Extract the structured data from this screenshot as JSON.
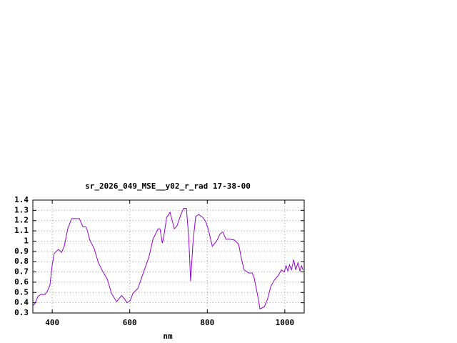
{
  "chart_data": {
    "type": "line",
    "title": "sr_2026_049_MSE__y02_r_rad 17-38-00",
    "x_label": "nm",
    "x": [
      350,
      355,
      363,
      370,
      381,
      387,
      394,
      400,
      405,
      416,
      424,
      431,
      440,
      450,
      470,
      479,
      486,
      490,
      497,
      508,
      519,
      531,
      542,
      553,
      566,
      579,
      586,
      593,
      601,
      608,
      621,
      634,
      649,
      660,
      673,
      678,
      684,
      688,
      695,
      704,
      715,
      722,
      732,
      739,
      746,
      752,
      757,
      763,
      770,
      778,
      789,
      796,
      803,
      813,
      824,
      833,
      840,
      848,
      857,
      870,
      881,
      888,
      895,
      907,
      916,
      921,
      929,
      936,
      947,
      955,
      964,
      973,
      984,
      991,
      999,
      1003,
      1008,
      1012,
      1017,
      1023,
      1028,
      1034,
      1039,
      1043,
      1047
    ],
    "series": [
      {
        "name": "sr_2026_049_MSE__y02_r_rad",
        "color": "#9400d3",
        "values": [
          0.37,
          0.39,
          0.46,
          0.48,
          0.48,
          0.51,
          0.57,
          0.77,
          0.88,
          0.92,
          0.89,
          0.95,
          1.12,
          1.22,
          1.22,
          1.14,
          1.14,
          1.11,
          1.01,
          0.93,
          0.79,
          0.7,
          0.63,
          0.49,
          0.41,
          0.47,
          0.44,
          0.4,
          0.42,
          0.49,
          0.54,
          0.68,
          0.84,
          1.02,
          1.12,
          1.12,
          0.98,
          1.05,
          1.23,
          1.28,
          1.12,
          1.15,
          1.26,
          1.32,
          1.32,
          1.05,
          0.61,
          0.98,
          1.24,
          1.26,
          1.23,
          1.19,
          1.11,
          0.95,
          1.0,
          1.07,
          1.09,
          1.02,
          1.02,
          1.01,
          0.97,
          0.83,
          0.72,
          0.69,
          0.69,
          0.64,
          0.49,
          0.34,
          0.36,
          0.43,
          0.56,
          0.62,
          0.67,
          0.72,
          0.7,
          0.76,
          0.71,
          0.77,
          0.72,
          0.82,
          0.72,
          0.79,
          0.71,
          0.76,
          0.72
        ]
      }
    ],
    "xlim": [
      350,
      1050
    ],
    "xticks": [
      400,
      600,
      800,
      1000
    ],
    "ylim": [
      0.3,
      1.4
    ],
    "yticks": [
      0.3,
      0.4,
      0.5,
      0.6,
      0.7,
      0.8,
      0.9,
      1,
      1.1,
      1.2,
      1.3,
      1.4
    ],
    "grid": true
  }
}
